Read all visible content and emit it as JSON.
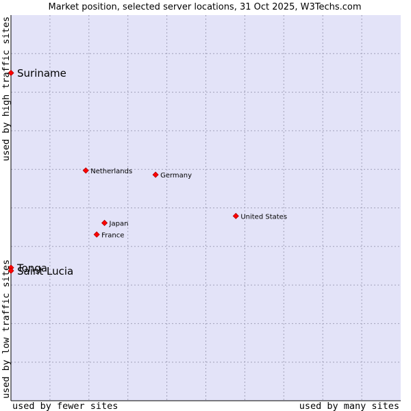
{
  "chart_data": {
    "type": "scatter",
    "title": "Market position, selected server locations, 31 Oct 2025, W3Techs.com",
    "xlabel_left": "used by fewer sites",
    "xlabel_right": "used by many sites",
    "ylabel_top": "used by high traffic sites",
    "ylabel_bottom": "used by low traffic sites",
    "xlim": [
      0,
      10
    ],
    "ylim": [
      0,
      10
    ],
    "grid": true,
    "colors": {
      "plot_bg": "#e3e3f8",
      "grid": "#a0a0b8",
      "point": "#ff0000",
      "point_outline": "#b00000",
      "axis": "#000000"
    },
    "points": [
      {
        "label": "Suriname",
        "x": 0.0,
        "y": 8.5,
        "emphasis": true
      },
      {
        "label": "Netherlands",
        "x": 1.92,
        "y": 5.97,
        "emphasis": false
      },
      {
        "label": "Germany",
        "x": 3.71,
        "y": 5.86,
        "emphasis": false
      },
      {
        "label": "United States",
        "x": 5.77,
        "y": 4.79,
        "emphasis": false
      },
      {
        "label": "Japan",
        "x": 2.4,
        "y": 4.61,
        "emphasis": false
      },
      {
        "label": "France",
        "x": 2.2,
        "y": 4.31,
        "emphasis": false
      },
      {
        "label": "Tonga",
        "x": 0.0,
        "y": 3.45,
        "emphasis": true
      },
      {
        "label": "Saint Lucia",
        "x": 0.0,
        "y": 3.37,
        "emphasis": true
      }
    ]
  }
}
